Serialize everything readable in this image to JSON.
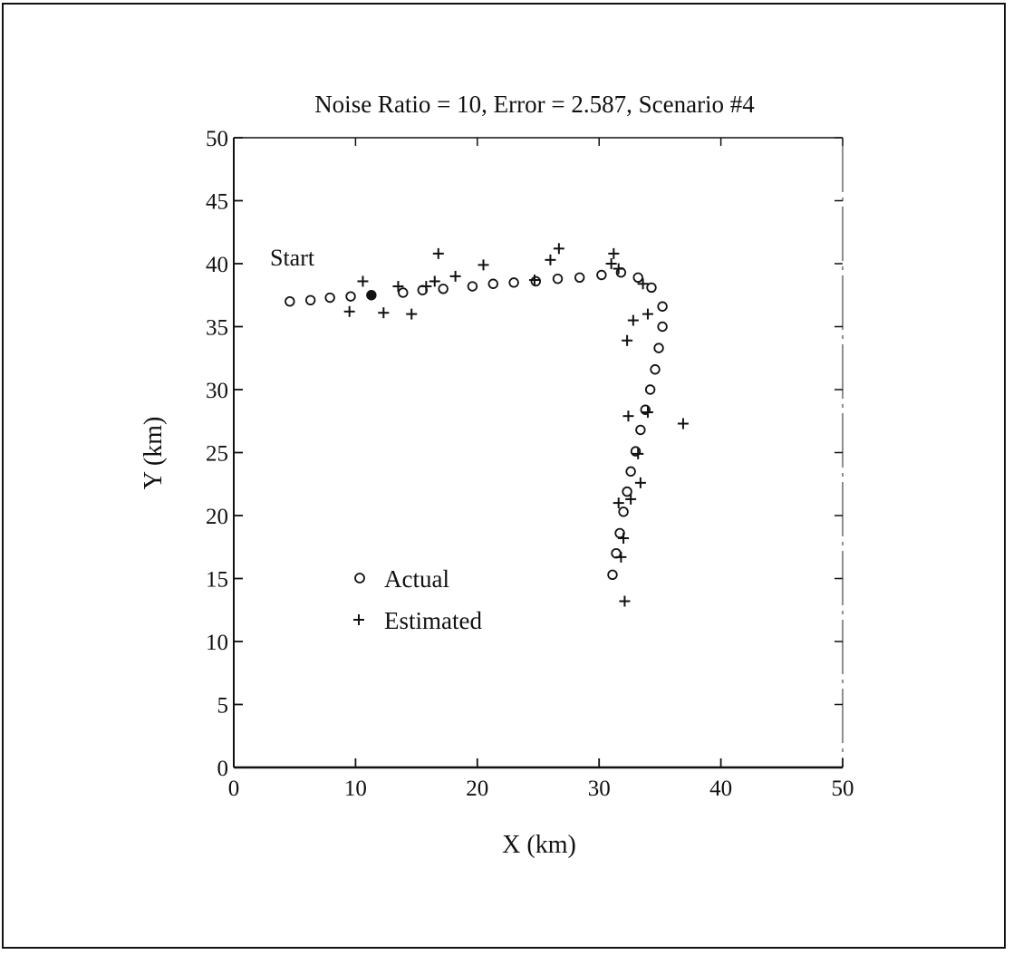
{
  "chart_data": {
    "type": "scatter",
    "title": "Noise Ratio = 10,  Error = 2.587,  Scenario #4",
    "xlabel": "X (km)",
    "ylabel": "Y (km)",
    "xlim": [
      0,
      50
    ],
    "ylim": [
      0,
      50
    ],
    "xticks": [
      0,
      10,
      20,
      30,
      40,
      50
    ],
    "yticks": [
      0,
      5,
      10,
      15,
      20,
      25,
      30,
      35,
      40,
      45,
      50
    ],
    "grid": false,
    "annotation": "Start",
    "legend_position": "lower-left",
    "series": [
      {
        "name": "Actual",
        "marker": "circle",
        "points": [
          [
            4.6,
            37.0
          ],
          [
            6.3,
            37.1
          ],
          [
            7.9,
            37.3
          ],
          [
            9.6,
            37.4
          ],
          [
            11.3,
            37.5
          ],
          [
            13.9,
            37.7
          ],
          [
            15.5,
            37.9
          ],
          [
            17.2,
            38.0
          ],
          [
            19.6,
            38.2
          ],
          [
            21.3,
            38.4
          ],
          [
            23.0,
            38.5
          ],
          [
            24.8,
            38.6
          ],
          [
            26.6,
            38.8
          ],
          [
            28.4,
            38.9
          ],
          [
            30.2,
            39.1
          ],
          [
            31.8,
            39.3
          ],
          [
            33.2,
            38.9
          ],
          [
            34.3,
            38.1
          ],
          [
            35.2,
            36.6
          ],
          [
            35.2,
            35.0
          ],
          [
            34.9,
            33.3
          ],
          [
            34.6,
            31.6
          ],
          [
            34.2,
            30.0
          ],
          [
            33.8,
            28.4
          ],
          [
            33.4,
            26.8
          ],
          [
            33.0,
            25.1
          ],
          [
            32.6,
            23.5
          ],
          [
            32.3,
            21.9
          ],
          [
            32.0,
            20.3
          ],
          [
            31.7,
            18.6
          ],
          [
            31.4,
            17.0
          ],
          [
            31.1,
            15.3
          ]
        ]
      },
      {
        "name": "Estimated",
        "marker": "plus",
        "points": [
          [
            9.5,
            36.2
          ],
          [
            10.6,
            38.6
          ],
          [
            12.3,
            36.1
          ],
          [
            13.5,
            38.2
          ],
          [
            14.6,
            36.0
          ],
          [
            15.8,
            38.2
          ],
          [
            16.5,
            38.6
          ],
          [
            16.8,
            40.8
          ],
          [
            18.2,
            39.0
          ],
          [
            20.5,
            39.9
          ],
          [
            24.7,
            38.7
          ],
          [
            26.0,
            40.3
          ],
          [
            26.7,
            41.2
          ],
          [
            31.0,
            40.0
          ],
          [
            31.2,
            40.8
          ],
          [
            31.6,
            39.6
          ],
          [
            32.3,
            33.9
          ],
          [
            32.4,
            27.9
          ],
          [
            32.6,
            21.3
          ],
          [
            32.8,
            35.5
          ],
          [
            33.2,
            24.9
          ],
          [
            33.4,
            22.6
          ],
          [
            33.6,
            38.4
          ],
          [
            34.0,
            36.0
          ],
          [
            34.0,
            28.2
          ],
          [
            31.6,
            21.0
          ],
          [
            31.8,
            16.7
          ],
          [
            32.0,
            18.2
          ],
          [
            32.1,
            13.2
          ],
          [
            36.9,
            27.3
          ]
        ]
      }
    ],
    "start_marker": [
      11.3,
      37.5
    ]
  }
}
